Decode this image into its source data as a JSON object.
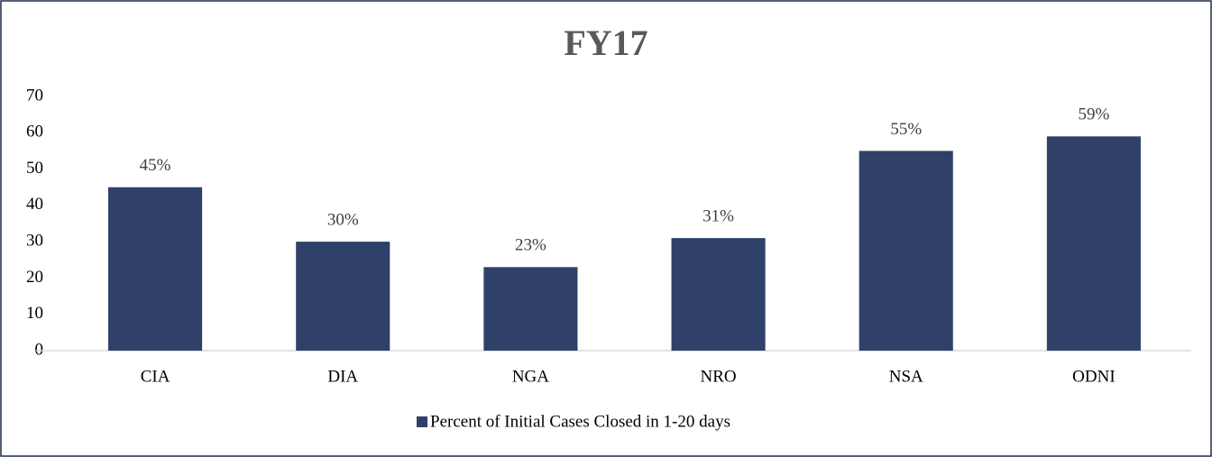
{
  "chart_data": {
    "type": "bar",
    "title": "FY17",
    "categories": [
      "CIA",
      "DIA",
      "NGA",
      "NRO",
      "NSA",
      "ODNI"
    ],
    "series": [
      {
        "name": "Percent of Initial Cases Closed in 1-20 days",
        "color": "#2f4069",
        "values": [
          45,
          30,
          23,
          31,
          55,
          59
        ],
        "value_labels": [
          "45%",
          "30%",
          "23%",
          "31%",
          "55%",
          "59%"
        ]
      }
    ],
    "ylim": [
      0,
      70
    ],
    "yticks": [
      0,
      10,
      20,
      30,
      40,
      50,
      60,
      70
    ],
    "grid": false,
    "legend": "bottom"
  }
}
